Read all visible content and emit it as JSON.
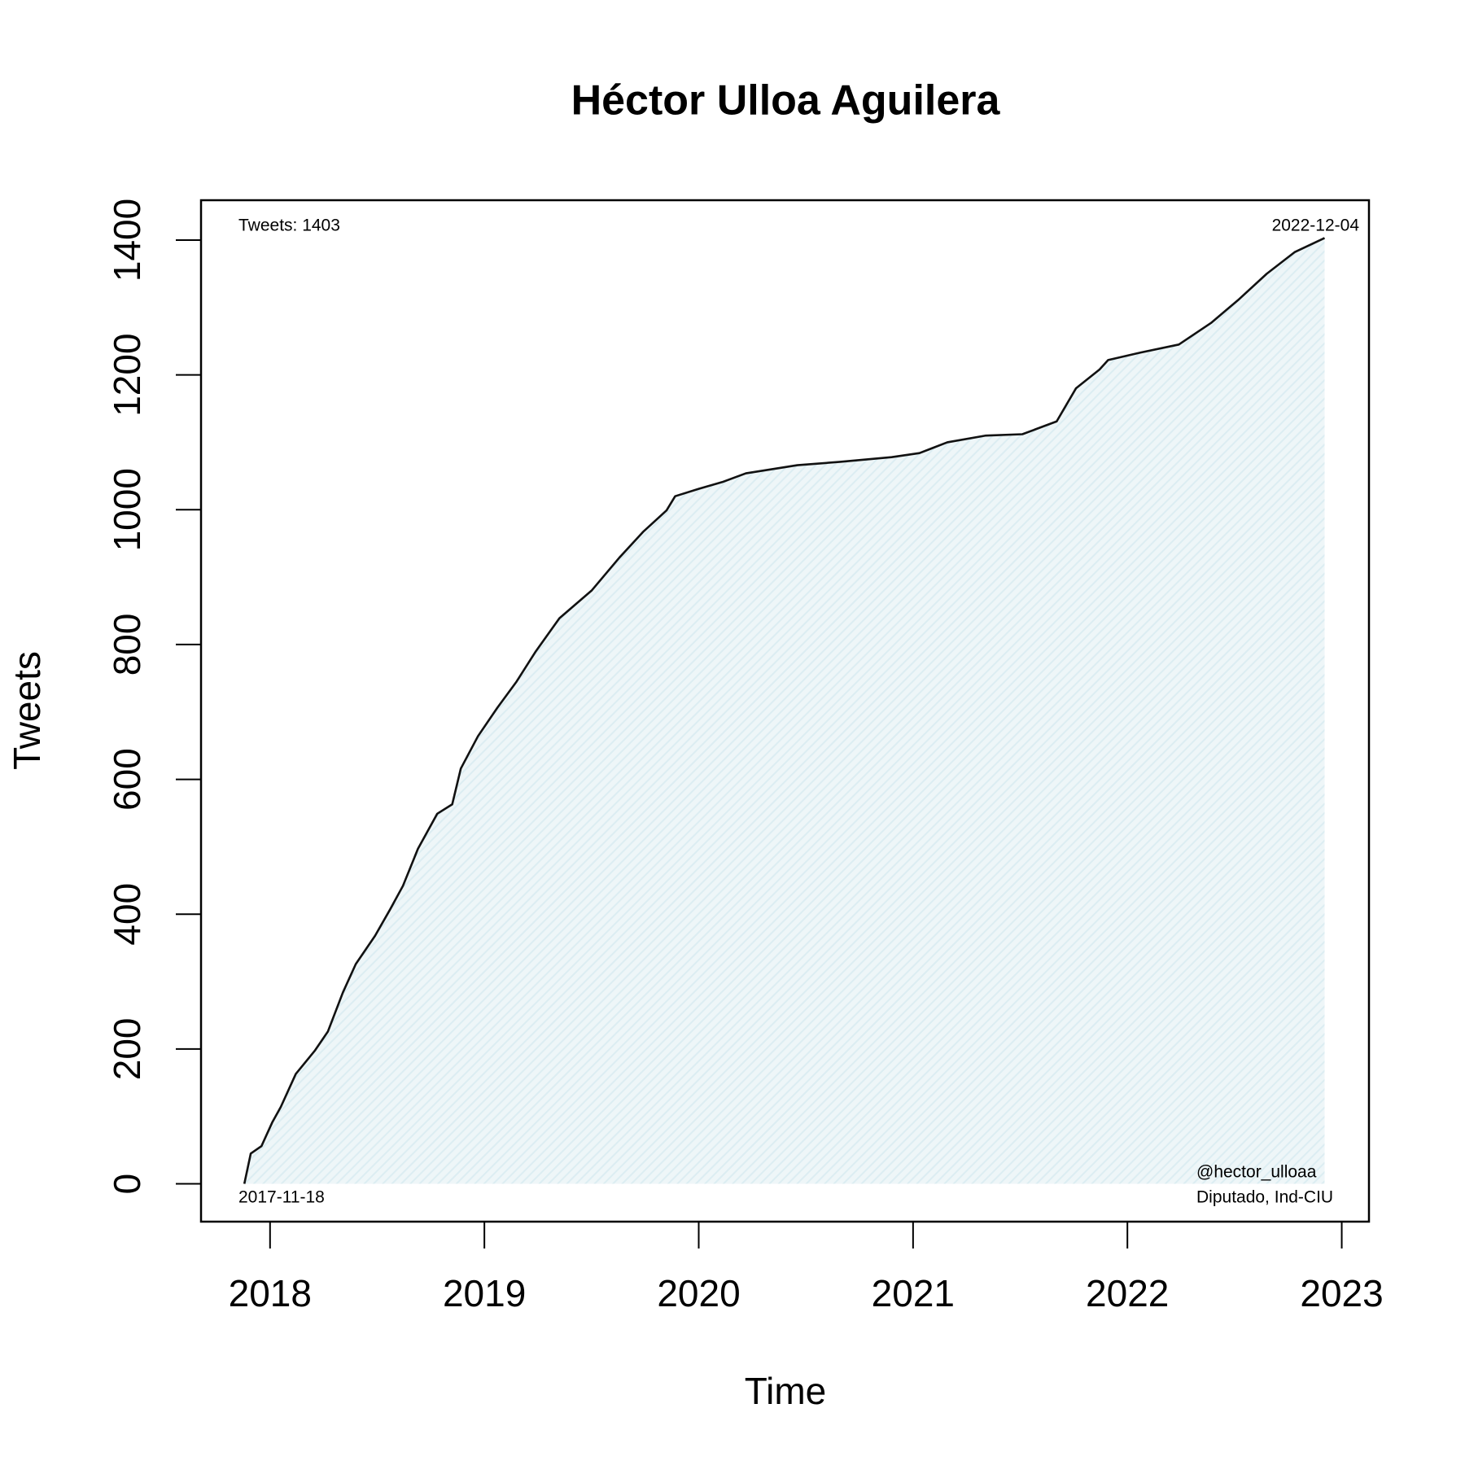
{
  "chart_data": {
    "type": "line",
    "title": "Héctor Ulloa Aguilera",
    "xlabel": "Time",
    "ylabel": "Tweets",
    "annotations": [
      "Tweets: 1403",
      "2022-12-04",
      "2017-11-18",
      "@hector_ulloaa",
      "Diputado, Ind-CIU"
    ],
    "x": [
      2017.88,
      2017.91,
      2017.96,
      2018.01,
      2018.05,
      2018.12,
      2018.21,
      2018.27,
      2018.34,
      2018.4,
      2018.49,
      2018.56,
      2018.62,
      2018.69,
      2018.78,
      2018.85,
      2018.89,
      2018.97,
      2019.06,
      2019.15,
      2019.24,
      2019.35,
      2019.5,
      2019.63,
      2019.74,
      2019.85,
      2019.89,
      2020.0,
      2020.11,
      2020.22,
      2020.46,
      2020.66,
      2020.9,
      2021.03,
      2021.16,
      2021.34,
      2021.51,
      2021.67,
      2021.76,
      2021.87,
      2021.91,
      2022.06,
      2022.24,
      2022.39,
      2022.52,
      2022.65,
      2022.78,
      2022.92
    ],
    "series": [
      {
        "name": "Tweets",
        "color": "#111111",
        "fill_color": "#dcedf2",
        "values": [
          0,
          45,
          56,
          91,
          114,
          163,
          198,
          226,
          284,
          326,
          368,
          407,
          442,
          497,
          549,
          563,
          616,
          664,
          706,
          745,
          790,
          839,
          880,
          929,
          967,
          999,
          1020,
          1031,
          1041,
          1054,
          1066,
          1071,
          1078,
          1084,
          1100,
          1110,
          1112,
          1131,
          1180,
          1208,
          1222,
          1233,
          1245,
          1277,
          1312,
          1350,
          1382,
          1403
        ]
      }
    ],
    "xlim": [
      2017.678,
      2023.127
    ],
    "xticks": [
      2018,
      2019,
      2020,
      2021,
      2022,
      2023
    ],
    "ylim": [
      -56.1,
      1459.1
    ],
    "yticks": [
      0,
      200,
      400,
      600,
      800,
      1000,
      1200,
      1400
    ],
    "grid": false
  }
}
